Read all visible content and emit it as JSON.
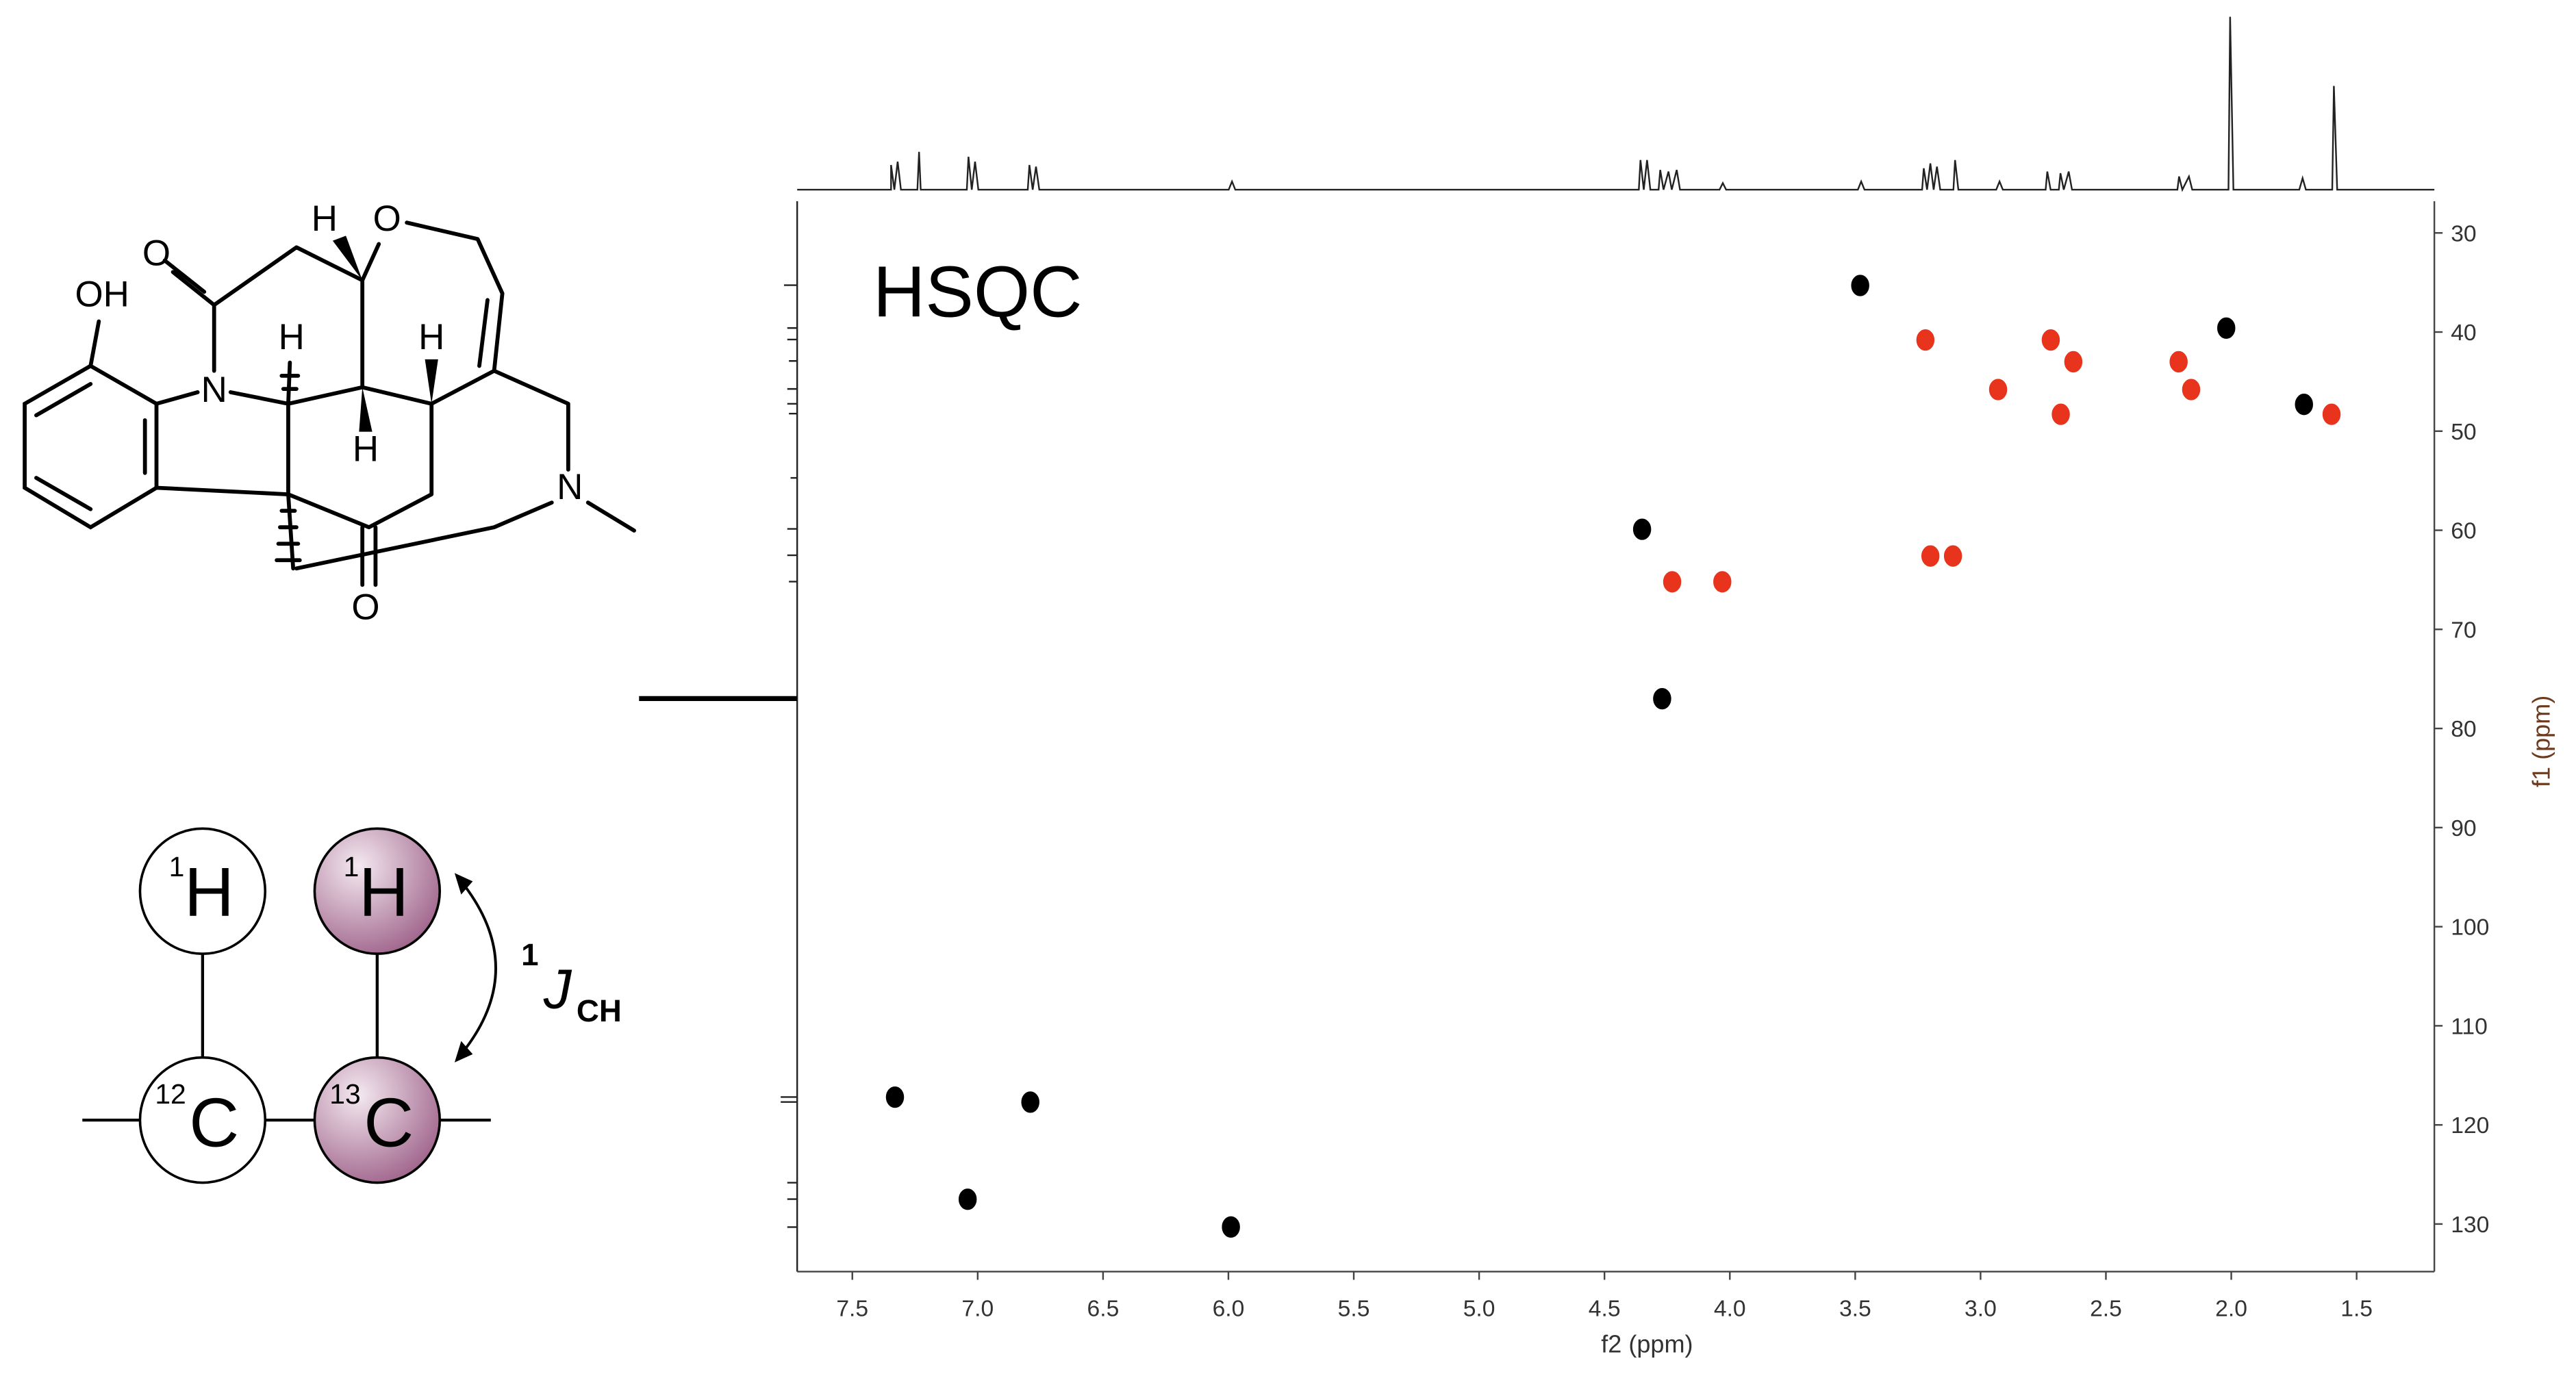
{
  "chart_data": {
    "type": "scatter",
    "annotation": "HSQC",
    "xlabel": "f2 (ppm)",
    "ylabel": "f1 (ppm)",
    "xlim": [
      7.72,
      1.19
    ],
    "ylim": [
      26.8,
      134.8
    ],
    "xticks": [
      7.5,
      {
        "value": 7,
        "label": "7.0"
      },
      6.5,
      {
        "value": 6,
        "label": "6.0"
      },
      5.5,
      {
        "value": 5,
        "label": "5.0"
      },
      4.5,
      {
        "value": 4,
        "label": "4.0"
      },
      3.5,
      {
        "value": 3,
        "label": "3.0"
      },
      2.5,
      {
        "value": 2,
        "label": "2.0"
      },
      1.5
    ],
    "yticks": [
      30,
      40,
      50,
      60,
      70,
      80,
      90,
      100,
      110,
      120,
      130
    ],
    "series": [
      {
        "color": "#000000",
        "x": [
          3.48,
          2.02,
          1.71,
          4.35,
          4.27,
          7.33,
          6.79,
          7.04,
          5.99
        ],
        "values": [
          35.3,
          39.6,
          47.3,
          59.9,
          77.0,
          117.2,
          117.7,
          127.5,
          130.3
        ]
      },
      {
        "color": "#e8341c",
        "x": [
          3.22,
          2.72,
          2.63,
          2.21,
          2.93,
          2.16,
          2.68,
          1.6,
          3.2,
          3.11,
          4.23,
          4.03
        ],
        "values": [
          40.8,
          40.8,
          43.0,
          43.0,
          45.8,
          45.8,
          48.3,
          48.3,
          62.6,
          62.6,
          65.2,
          65.2
        ]
      }
    ]
  },
  "molecule": {
    "atoms": [
      "OH",
      "O",
      "N",
      "H",
      "O",
      "H",
      "H",
      "H",
      "N",
      "O"
    ]
  },
  "diagram": {
    "nuclei": [
      {
        "mass": "1",
        "symbol": "H"
      },
      {
        "mass": "1",
        "symbol": "H"
      },
      {
        "mass": "12",
        "symbol": "C"
      },
      {
        "mass": "13",
        "symbol": "C"
      }
    ],
    "coupling": {
      "number": "1",
      "symbol": "J",
      "subscript": "CH"
    }
  }
}
